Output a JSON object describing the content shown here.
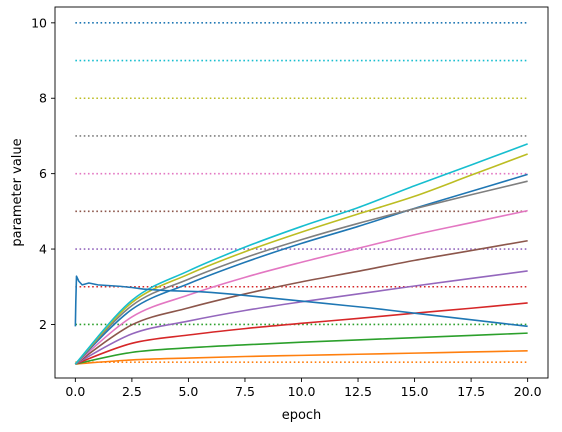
{
  "chart_data": {
    "type": "line",
    "title": "",
    "xlabel": "epoch",
    "ylabel": "parameter value",
    "xlim": [
      -0.9,
      20.9
    ],
    "ylim": [
      0.58,
      10.42
    ],
    "xticks": [
      0.0,
      2.5,
      5.0,
      7.5,
      10.0,
      12.5,
      15.0,
      17.5,
      20.0
    ],
    "xtick_labels": [
      "0.0",
      "2.5",
      "5.0",
      "7.5",
      "10.0",
      "12.5",
      "15.0",
      "17.5",
      "20.0"
    ],
    "yticks": [
      2,
      4,
      6,
      8,
      10
    ],
    "ytick_labels": [
      "2",
      "4",
      "6",
      "8",
      "10"
    ],
    "grid": false,
    "legend": "none",
    "reference_lines": [
      {
        "y": 1,
        "color": "#ff7f0e",
        "style": "dotted"
      },
      {
        "y": 2,
        "color": "#2ca02c",
        "style": "dotted"
      },
      {
        "y": 3,
        "color": "#d62728",
        "style": "dotted"
      },
      {
        "y": 4,
        "color": "#9467bd",
        "style": "dotted"
      },
      {
        "y": 5,
        "color": "#8c564b",
        "style": "dotted"
      },
      {
        "y": 6,
        "color": "#e377c2",
        "style": "dotted"
      },
      {
        "y": 7,
        "color": "#7f7f7f",
        "style": "dotted"
      },
      {
        "y": 8,
        "color": "#bcbd22",
        "style": "dotted"
      },
      {
        "y": 9,
        "color": "#17becf",
        "style": "dotted"
      },
      {
        "y": 10,
        "color": "#1f77b4",
        "style": "dotted"
      }
    ],
    "series": [
      {
        "color": "#ff7f0e",
        "x": [
          0,
          2.5,
          5,
          7.5,
          10,
          12.5,
          15,
          17.5,
          20
        ],
        "y": [
          0.95,
          1.06,
          1.11,
          1.15,
          1.18,
          1.21,
          1.24,
          1.27,
          1.3
        ]
      },
      {
        "color": "#2ca02c",
        "x": [
          0,
          2.5,
          5,
          7.5,
          10,
          12.5,
          15,
          17.5,
          20
        ],
        "y": [
          0.95,
          1.26,
          1.38,
          1.46,
          1.53,
          1.59,
          1.65,
          1.71,
          1.77
        ]
      },
      {
        "color": "#d62728",
        "x": [
          0,
          2.5,
          5,
          7.5,
          10,
          12.5,
          15,
          17.5,
          20
        ],
        "y": [
          0.95,
          1.5,
          1.72,
          1.89,
          2.03,
          2.16,
          2.3,
          2.43,
          2.57
        ]
      },
      {
        "color": "#9467bd",
        "x": [
          0,
          2.5,
          5,
          7.5,
          10,
          12.5,
          15,
          17.5,
          20
        ],
        "y": [
          0.95,
          1.75,
          2.09,
          2.37,
          2.6,
          2.81,
          3.02,
          3.22,
          3.42
        ]
      },
      {
        "color": "#8c564b",
        "x": [
          0,
          2.5,
          5,
          7.5,
          10,
          12.5,
          15,
          17.5,
          20
        ],
        "y": [
          0.95,
          1.99,
          2.44,
          2.81,
          3.13,
          3.41,
          3.7,
          3.96,
          4.22
        ]
      },
      {
        "color": "#e377c2",
        "x": [
          0,
          2.5,
          5,
          7.5,
          10,
          12.5,
          15,
          17.5,
          20
        ],
        "y": [
          0.95,
          2.2,
          2.78,
          3.25,
          3.65,
          4.02,
          4.38,
          4.7,
          5.02
        ]
      },
      {
        "color": "#1f77b4",
        "x": [
          0,
          2.5,
          5,
          7.5,
          10,
          12.5,
          15,
          17.5,
          20
        ],
        "y": [
          0.95,
          2.4,
          3.08,
          3.65,
          4.15,
          4.6,
          5.08,
          5.53,
          5.98
        ]
      },
      {
        "color": "#7f7f7f",
        "x": [
          0,
          2.5,
          5,
          7.5,
          10,
          12.5,
          15,
          17.5,
          20
        ],
        "y": [
          0.95,
          2.5,
          3.2,
          3.77,
          4.25,
          4.68,
          5.07,
          5.44,
          5.8
        ]
      },
      {
        "color": "#bcbd22",
        "x": [
          0,
          2.5,
          5,
          7.5,
          10,
          12.5,
          15,
          17.5,
          20
        ],
        "y": [
          0.95,
          2.58,
          3.33,
          3.93,
          4.45,
          4.93,
          5.4,
          5.96,
          6.52
        ]
      },
      {
        "color": "#17becf",
        "x": [
          0,
          2.5,
          5,
          7.5,
          10,
          12.5,
          15,
          17.5,
          20
        ],
        "y": [
          0.95,
          2.64,
          3.42,
          4.05,
          4.6,
          5.1,
          5.68,
          6.23,
          6.79
        ]
      },
      {
        "color": "#1f77b4",
        "x": [
          0,
          0.02,
          0.05,
          0.15,
          0.3,
          0.6,
          1,
          1.5,
          2,
          2.5,
          3,
          3.5,
          4,
          4.5,
          5,
          5.5,
          6,
          7,
          8,
          9,
          10,
          11,
          12,
          13,
          14,
          15,
          16,
          17,
          18,
          19,
          20
        ],
        "y": [
          1.95,
          2.6,
          3.28,
          3.15,
          3.05,
          3.1,
          3.05,
          3.03,
          3.01,
          2.98,
          2.94,
          2.92,
          2.9,
          2.89,
          2.88,
          2.87,
          2.85,
          2.8,
          2.74,
          2.68,
          2.62,
          2.56,
          2.5,
          2.44,
          2.37,
          2.3,
          2.23,
          2.16,
          2.09,
          2.02,
          1.95
        ]
      }
    ]
  }
}
